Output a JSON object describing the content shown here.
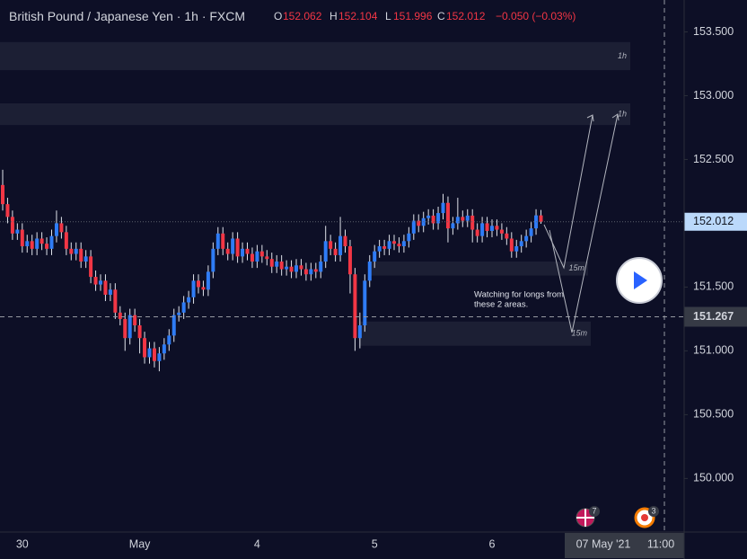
{
  "header": {
    "title": "British Pound / Japanese Yen · 1h · FXCM",
    "o_label": "O",
    "o": "152.062",
    "h_label": "H",
    "h": "152.104",
    "l_label": "L",
    "l": "151.996",
    "c_label": "C",
    "c": "152.012",
    "change": "−0.050 (−0.03%)"
  },
  "chart_data": {
    "type": "candlestick",
    "categories": [
      null,
      null,
      null,
      null,
      "30",
      null,
      null,
      null,
      null,
      null,
      null,
      null,
      null,
      null,
      null,
      null,
      null,
      null,
      null,
      null,
      null,
      null,
      null,
      null,
      null,
      null,
      null,
      null,
      "May",
      null,
      null,
      null,
      null,
      null,
      null,
      null,
      null,
      null,
      null,
      null,
      null,
      null,
      null,
      null,
      null,
      null,
      null,
      null,
      null,
      null,
      null,
      null,
      "4",
      null,
      null,
      null,
      null,
      null,
      null,
      null,
      null,
      null,
      null,
      null,
      null,
      null,
      null,
      null,
      null,
      null,
      null,
      null,
      null,
      null,
      null,
      null,
      "5",
      null,
      null,
      null,
      null,
      null,
      null,
      null,
      null,
      null,
      null,
      null,
      null,
      null,
      null,
      null,
      null,
      null,
      null,
      null,
      null,
      null,
      null,
      null,
      "6",
      null,
      null,
      null,
      null,
      null,
      null,
      null,
      null,
      null,
      null
    ],
    "open": [
      152.3,
      152.15,
      152.05,
      151.92,
      151.95,
      151.82,
      151.86,
      151.8,
      151.88,
      151.84,
      151.8,
      151.9,
      152.0,
      151.93,
      151.8,
      151.76,
      151.8,
      151.7,
      151.74,
      151.58,
      151.52,
      151.55,
      151.44,
      151.48,
      151.3,
      151.25,
      151.1,
      151.28,
      151.2,
      151.1,
      150.95,
      151.02,
      150.92,
      150.98,
      151.05,
      151.12,
      151.28,
      151.3,
      151.38,
      151.42,
      151.55,
      151.5,
      151.48,
      151.62,
      151.8,
      151.92,
      151.8,
      151.76,
      151.88,
      151.74,
      151.8,
      151.76,
      151.7,
      151.78,
      151.74,
      151.72,
      151.66,
      151.7,
      151.64,
      151.66,
      151.62,
      151.67,
      151.64,
      151.6,
      151.64,
      151.62,
      151.7,
      151.86,
      151.8,
      151.75,
      151.9,
      151.82,
      151.6,
      151.1,
      151.2,
      151.55,
      151.7,
      151.78,
      151.82,
      151.8,
      151.86,
      151.84,
      151.82,
      151.86,
      151.92,
      152.02,
      151.98,
      152.04,
      152.06,
      152.0,
      152.08,
      152.16,
      151.96,
      152.0,
      152.05,
      152.02,
      152.06,
      151.95,
      151.9,
      152.0,
      151.94,
      151.98,
      151.95,
      151.92,
      151.88,
      151.78,
      151.82,
      151.86,
      151.9,
      151.96,
      152.062
    ],
    "high": [
      152.42,
      152.2,
      152.1,
      152.0,
      152.0,
      151.91,
      151.91,
      151.93,
      151.93,
      151.89,
      151.95,
      152.1,
      152.05,
      151.98,
      151.85,
      151.85,
      151.85,
      151.79,
      151.79,
      151.63,
      151.6,
      151.6,
      151.53,
      151.53,
      151.35,
      151.3,
      151.33,
      151.33,
      151.25,
      151.15,
      151.07,
      151.07,
      151.03,
      151.1,
      151.17,
      151.33,
      151.35,
      151.43,
      151.47,
      151.6,
      151.6,
      151.55,
      151.67,
      151.85,
      151.97,
      151.97,
      151.85,
      151.93,
      151.93,
      151.85,
      151.85,
      151.81,
      151.83,
      151.83,
      151.79,
      151.77,
      151.75,
      151.75,
      151.71,
      151.71,
      151.72,
      151.72,
      151.69,
      151.69,
      151.69,
      151.75,
      151.98,
      151.91,
      151.85,
      152.05,
      151.95,
      151.87,
      151.65,
      151.3,
      151.6,
      151.75,
      151.83,
      151.87,
      151.87,
      151.91,
      151.91,
      151.89,
      151.91,
      151.97,
      152.07,
      152.07,
      152.09,
      152.11,
      152.11,
      152.13,
      152.23,
      152.21,
      152.05,
      152.2,
      152.1,
      152.11,
      152.11,
      152.0,
      152.05,
      152.05,
      152.03,
      152.03,
      152.0,
      151.97,
      151.93,
      151.87,
      151.91,
      151.95,
      152.01,
      152.11,
      152.104
    ],
    "low": [
      152.1,
      152.0,
      151.87,
      151.87,
      151.77,
      151.77,
      151.75,
      151.75,
      151.79,
      151.75,
      151.75,
      151.85,
      151.88,
      151.75,
      151.71,
      151.71,
      151.65,
      151.65,
      151.53,
      151.47,
      151.47,
      151.39,
      151.39,
      151.25,
      151.2,
      151.0,
      151.05,
      151.15,
      150.98,
      150.9,
      150.9,
      150.87,
      150.84,
      150.93,
      151.0,
      151.07,
      151.23,
      151.25,
      151.33,
      151.37,
      151.45,
      151.43,
      151.43,
      151.57,
      151.75,
      151.75,
      151.71,
      151.71,
      151.69,
      151.69,
      151.71,
      151.65,
      151.65,
      151.69,
      151.67,
      151.61,
      151.61,
      151.59,
      151.59,
      151.57,
      151.57,
      151.59,
      151.55,
      151.55,
      151.57,
      151.57,
      151.65,
      151.75,
      151.7,
      151.7,
      151.77,
      151.45,
      151.0,
      151.02,
      151.15,
      151.5,
      151.65,
      151.73,
      151.75,
      151.75,
      151.79,
      151.77,
      151.77,
      151.81,
      151.87,
      151.93,
      151.93,
      151.99,
      151.95,
      151.95,
      152.03,
      151.85,
      151.91,
      151.95,
      151.97,
      151.97,
      151.85,
      151.85,
      151.85,
      151.89,
      151.89,
      151.9,
      151.87,
      151.83,
      151.73,
      151.73,
      151.77,
      151.81,
      151.85,
      151.91,
      151.996
    ],
    "close": [
      152.15,
      152.05,
      151.92,
      151.95,
      151.82,
      151.86,
      151.8,
      151.88,
      151.84,
      151.8,
      151.9,
      152.0,
      151.93,
      151.8,
      151.76,
      151.8,
      151.7,
      151.74,
      151.58,
      151.52,
      151.55,
      151.44,
      151.48,
      151.3,
      151.25,
      151.1,
      151.28,
      151.2,
      151.1,
      150.95,
      151.02,
      150.92,
      150.98,
      151.05,
      151.12,
      151.28,
      151.3,
      151.38,
      151.42,
      151.55,
      151.5,
      151.48,
      151.62,
      151.8,
      151.92,
      151.8,
      151.76,
      151.88,
      151.74,
      151.8,
      151.76,
      151.7,
      151.78,
      151.74,
      151.72,
      151.66,
      151.7,
      151.64,
      151.66,
      151.62,
      151.67,
      151.64,
      151.6,
      151.64,
      151.62,
      151.7,
      151.86,
      151.8,
      151.75,
      151.9,
      151.82,
      151.6,
      151.1,
      151.2,
      151.55,
      151.7,
      151.78,
      151.82,
      151.8,
      151.86,
      151.84,
      151.82,
      151.86,
      151.92,
      152.02,
      151.98,
      152.04,
      152.06,
      152.0,
      152.08,
      152.16,
      151.96,
      152.0,
      152.05,
      152.02,
      152.06,
      151.95,
      151.9,
      152.0,
      151.94,
      151.98,
      151.95,
      151.92,
      151.88,
      151.78,
      151.82,
      151.86,
      151.9,
      151.96,
      152.062,
      152.012
    ],
    "up_color": "#2f7cf6",
    "down_color": "#f23645",
    "ylim": [
      149.58,
      153.75
    ],
    "yticks": [
      {
        "value": 150.0,
        "label": "150.000"
      },
      {
        "value": 150.5,
        "label": "150.500"
      },
      {
        "value": 151.0,
        "label": "151.000"
      },
      {
        "value": 151.5,
        "label": "151.500"
      },
      {
        "value": 152.0,
        "label": "152.000"
      },
      {
        "value": 152.5,
        "label": "152.500"
      },
      {
        "value": 153.0,
        "label": "153.000"
      },
      {
        "value": 153.5,
        "label": "153.500"
      }
    ],
    "last_price": {
      "value": 152.012,
      "label": "152.012"
    },
    "crosshair_price": {
      "value": 151.267,
      "label": "151.267"
    },
    "crosshair_date": "07 May '21",
    "crosshair_time": "11:00",
    "zones": [
      {
        "label": "1h",
        "top": 153.42,
        "bottom": 153.2
      },
      {
        "label": "1h",
        "top": 152.94,
        "bottom": 152.77
      },
      {
        "label": "15m",
        "top": 151.7,
        "bottom": 151.59
      },
      {
        "label": "15m",
        "top": 151.23,
        "bottom": 151.04
      }
    ],
    "annotation": [
      "Watching for longs from",
      "these 2 areas."
    ],
    "events": [
      "7",
      "3"
    ]
  }
}
